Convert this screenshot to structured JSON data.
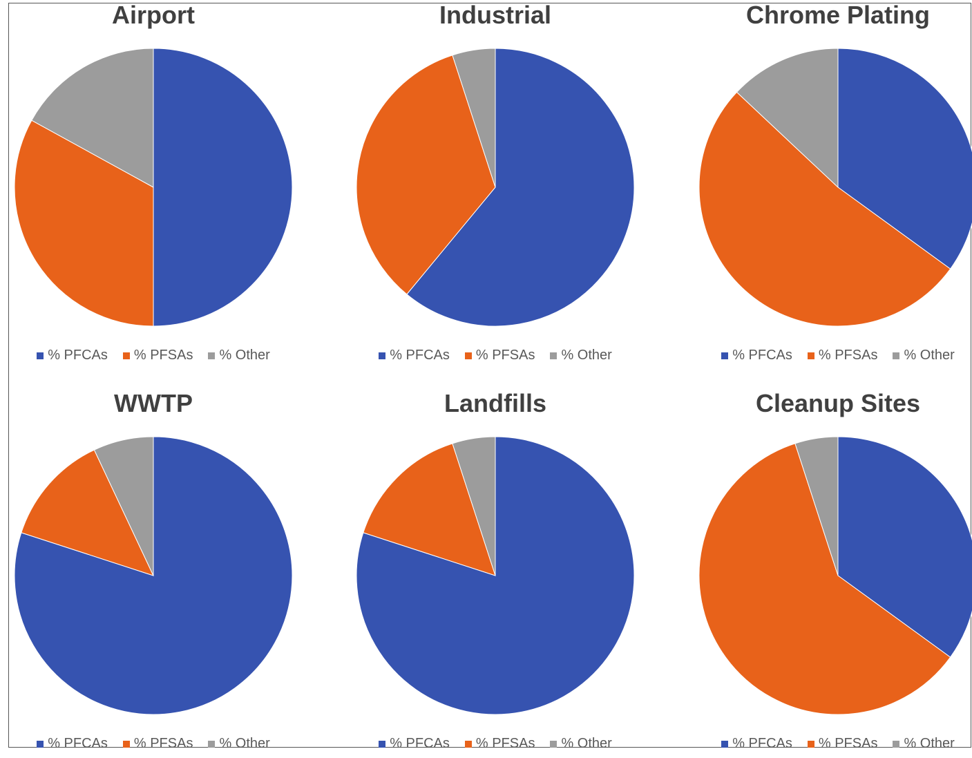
{
  "colors": {
    "pfcas": "#3653b0",
    "pfsas": "#e8621a",
    "other": "#9c9c9c"
  },
  "chart_data": [
    {
      "type": "pie",
      "title": "Airport",
      "categories": [
        "% PFCAs",
        "% PFSAs",
        "% Other"
      ],
      "values": [
        50,
        33,
        17
      ]
    },
    {
      "type": "pie",
      "title": "Industrial",
      "categories": [
        "% PFCAs",
        "% PFSAs",
        "% Other"
      ],
      "values": [
        61,
        34,
        5
      ]
    },
    {
      "type": "pie",
      "title": "Chrome Plating",
      "categories": [
        "% PFCAs",
        "% PFSAs",
        "% Other"
      ],
      "values": [
        35,
        52,
        13
      ]
    },
    {
      "type": "pie",
      "title": "WWTP",
      "categories": [
        "% PFCAs",
        "% PFSAs",
        "% Other"
      ],
      "values": [
        80,
        13,
        7
      ]
    },
    {
      "type": "pie",
      "title": "Landfills",
      "categories": [
        "% PFCAs",
        "% PFSAs",
        "% Other"
      ],
      "values": [
        80,
        15,
        5
      ]
    },
    {
      "type": "pie",
      "title": "Cleanup Sites",
      "categories": [
        "% PFCAs",
        "% PFSAs",
        "% Other"
      ],
      "values": [
        35,
        60,
        5
      ]
    }
  ]
}
